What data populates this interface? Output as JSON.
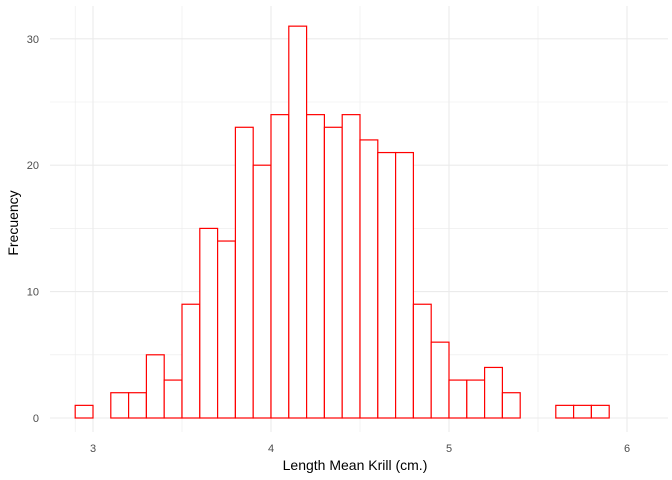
{
  "chart_data": {
    "type": "bar",
    "subtype": "histogram",
    "title": "",
    "xlabel": "Length Mean Krill (cm.)",
    "ylabel": "Frecuency",
    "xlim": [
      2.9,
      6.05
    ],
    "ylim": [
      0,
      31
    ],
    "x_ticks": [
      3,
      4,
      5,
      6
    ],
    "y_ticks": [
      0,
      10,
      20,
      30
    ],
    "x_tick_labels": [
      "3",
      "4",
      "5",
      "6"
    ],
    "y_tick_labels": [
      "0",
      "10",
      "20",
      "30"
    ],
    "bin_width": 0.1,
    "bin_start": 2.9,
    "values": [
      1,
      0,
      2,
      2,
      5,
      3,
      9,
      15,
      14,
      23,
      20,
      24,
      31,
      24,
      23,
      24,
      22,
      21,
      21,
      9,
      6,
      3,
      3,
      4,
      2,
      0,
      0,
      1,
      1,
      1
    ],
    "grid": true,
    "bar_stroke": "#ff0000",
    "bar_fill": "#ffffff",
    "grid_color": "#ebebeb"
  }
}
